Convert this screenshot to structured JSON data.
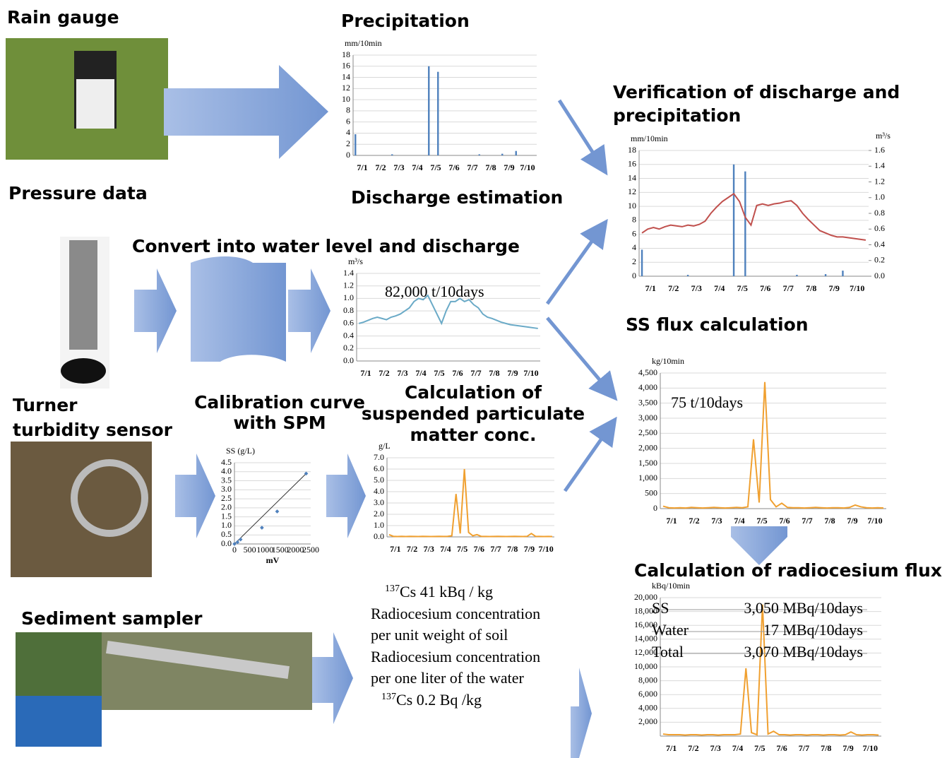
{
  "labels": {
    "rain_gauge": "Rain gauge",
    "precipitation": "Precipitation",
    "verification_1": "Verification of discharge and",
    "verification_2": "precipitation",
    "pressure_data": "Pressure data",
    "discharge_estimation": "Discharge estimation",
    "convert": "Convert into water level and discharge",
    "ss_flux": "SS flux calculation",
    "turner_1": "Turner",
    "turner_2": "turbidity sensor",
    "calibration_1": "Calibration curve",
    "calibration_2": "with SPM",
    "spm_1": "Calculation of",
    "spm_2": "suspended particulate",
    "spm_3": "matter conc.",
    "cs_flux": "Calculation of radiocesium flux",
    "sediment_sampler": "Sediment sampler"
  },
  "notes": {
    "soil_sup": "137",
    "soil_value": "Cs 41 kBq / kg",
    "soil_1": "Radiocesium concentration",
    "soil_2": "per unit weight of soil",
    "water_1": "Radiocesium concentration",
    "water_2": "per one liter of the water",
    "water_sup": "137",
    "water_value": "Cs 0.2 Bq /kg"
  },
  "charts": [
    {
      "type": "bar",
      "ylabel": "mm/10min",
      "ylim": [
        0,
        18
      ],
      "yticks": [
        0,
        2,
        4,
        6,
        8,
        10,
        12,
        14,
        16,
        18
      ],
      "categories": [
        "7/1",
        "7/2",
        "7/3",
        "7/4",
        "7/5",
        "7/6",
        "7/7",
        "7/8",
        "7/9",
        "7/10"
      ],
      "series": [
        {
          "color": "#4f81bd",
          "values": [
            3.8,
            0,
            0,
            0,
            0,
            0,
            0,
            0,
            0.2,
            0,
            0,
            0,
            0,
            0,
            0,
            0,
            16,
            0,
            15,
            0,
            0,
            0,
            0,
            0,
            0,
            0,
            0,
            0.2,
            0,
            0,
            0,
            0,
            0.3,
            0,
            0,
            0.8,
            0,
            0,
            0,
            0
          ]
        }
      ]
    },
    {
      "type": "line",
      "ylabel": "m³/s",
      "ylim": [
        0,
        1.4
      ],
      "yticks": [
        {
          "value": 0,
          "label": "0.0"
        },
        0.2,
        0.4,
        0.6,
        0.8,
        {
          "value": 1,
          "label": "1.0"
        },
        1.2,
        1.4
      ],
      "categories": [
        "7/1",
        "7/2",
        "7/3",
        "7/4",
        "7/5",
        "7/6",
        "7/7",
        "7/8",
        "7/9",
        "7/10"
      ],
      "annotation": "82,000 t/10days",
      "series": [
        {
          "color": "#6aaac7",
          "values": [
            0.6,
            0.62,
            0.65,
            0.68,
            0.7,
            0.68,
            0.66,
            0.7,
            0.72,
            0.75,
            0.8,
            0.85,
            0.95,
            1.0,
            0.98,
            1.05,
            0.9,
            0.75,
            0.6,
            0.8,
            0.95,
            0.95,
            1.0,
            0.95,
            0.98,
            0.9,
            0.85,
            0.75,
            0.7,
            0.68,
            0.65,
            0.62,
            0.6,
            0.58,
            0.57,
            0.56,
            0.55,
            0.54,
            0.53,
            0.52
          ]
        }
      ]
    },
    {
      "type": "dual",
      "ylabel": "mm/10min",
      "ylim": [
        0,
        18
      ],
      "yticks": [
        0,
        2,
        4,
        6,
        8,
        10,
        12,
        14,
        16,
        18
      ],
      "y2label": "m³/s",
      "y2lim": [
        0,
        1.6
      ],
      "y2ticks": [
        {
          "value": 0,
          "label": "0.0"
        },
        0.2,
        0.4,
        0.6,
        0.8,
        {
          "value": 1,
          "label": "1.0"
        },
        1.2,
        1.4,
        1.6
      ],
      "categories": [
        "7/1",
        "7/2",
        "7/3",
        "7/4",
        "7/5",
        "7/6",
        "7/7",
        "7/8",
        "7/9",
        "7/10"
      ],
      "series": [
        {
          "color": "#4f81bd",
          "values": [
            3.8,
            0,
            0,
            0,
            0,
            0,
            0,
            0,
            0.2,
            0,
            0,
            0,
            0,
            0,
            0,
            0,
            16,
            0,
            15,
            0,
            0,
            0,
            0,
            0,
            0,
            0,
            0,
            0.2,
            0,
            0,
            0,
            0,
            0.3,
            0,
            0,
            0.8,
            0,
            0,
            0,
            0
          ]
        },
        {
          "color": "#c0504d",
          "axis": "y2",
          "values": [
            0.55,
            0.6,
            0.62,
            0.6,
            0.63,
            0.65,
            0.64,
            0.63,
            0.65,
            0.64,
            0.66,
            0.7,
            0.8,
            0.88,
            0.95,
            1.0,
            1.05,
            0.95,
            0.75,
            0.65,
            0.9,
            0.92,
            0.9,
            0.92,
            0.93,
            0.95,
            0.96,
            0.9,
            0.8,
            0.72,
            0.65,
            0.58,
            0.55,
            0.52,
            0.5,
            0.5,
            0.49,
            0.48,
            0.47,
            0.46
          ]
        }
      ]
    },
    {
      "type": "line",
      "ylabel": "kg/10min",
      "ylim": [
        0,
        4500
      ],
      "yticks": [
        0,
        500,
        {
          "value": 1000,
          "label": "1,000"
        },
        {
          "value": 1500,
          "label": "1,500"
        },
        {
          "value": 2000,
          "label": "2,000"
        },
        {
          "value": 2500,
          "label": "2,500"
        },
        {
          "value": 3000,
          "label": "3,000"
        },
        {
          "value": 3500,
          "label": "3,500"
        },
        {
          "value": 4000,
          "label": "4,000"
        },
        {
          "value": 4500,
          "label": "4,500"
        }
      ],
      "categories": [
        "7/1",
        "7/2",
        "7/3",
        "7/4",
        "7/5",
        "7/6",
        "7/7",
        "7/8",
        "7/9",
        "7/10"
      ],
      "annotation": "75 t/10days",
      "series": [
        {
          "color": "#f0a030",
          "values": [
            80,
            30,
            20,
            30,
            20,
            40,
            30,
            20,
            30,
            40,
            30,
            20,
            30,
            40,
            30,
            60,
            2300,
            200,
            4200,
            300,
            60,
            180,
            40,
            30,
            30,
            20,
            30,
            40,
            30,
            20,
            30,
            30,
            20,
            40,
            120,
            60,
            30,
            20,
            30,
            20
          ]
        }
      ]
    },
    {
      "type": "scatter",
      "xlabel": "mV",
      "ylabel": "SS (g/L)",
      "xlim": [
        0,
        2500
      ],
      "xticks": [
        0,
        500,
        1000,
        1500,
        2000,
        2500
      ],
      "ylim": [
        0,
        4.5
      ],
      "yticks": [
        {
          "value": 0,
          "label": "0.0"
        },
        0.5,
        {
          "value": 1,
          "label": "1.0"
        },
        1.5,
        {
          "value": 2,
          "label": "2.0"
        },
        2.5,
        {
          "value": 3,
          "label": "3.0"
        },
        3.5,
        {
          "value": 4,
          "label": "4.0"
        },
        4.5
      ],
      "series": [
        {
          "color": "#4f81bd",
          "x": [
            0,
            100,
            200,
            900,
            1400,
            2350
          ],
          "values": [
            0,
            0.1,
            0.25,
            0.9,
            1.8,
            3.9
          ]
        }
      ]
    },
    {
      "type": "line",
      "ylabel": "g/L",
      "ylim": [
        0,
        7
      ],
      "yticks": [
        {
          "value": 0,
          "label": "0.0"
        },
        {
          "value": 1,
          "label": "1.0"
        },
        {
          "value": 2,
          "label": "2.0"
        },
        {
          "value": 3,
          "label": "3.0"
        },
        {
          "value": 4,
          "label": "4.0"
        },
        {
          "value": 5,
          "label": "5.0"
        },
        {
          "value": 6,
          "label": "6.0"
        },
        {
          "value": 7,
          "label": "7.0"
        }
      ],
      "categories": [
        "7/1",
        "7/2",
        "7/3",
        "7/4",
        "7/5",
        "7/6",
        "7/7",
        "7/8",
        "7/9",
        "7/10"
      ],
      "series": [
        {
          "color": "#f0a030",
          "values": [
            0.2,
            0.05,
            0.03,
            0.05,
            0.03,
            0.05,
            0.04,
            0.03,
            0.05,
            0.04,
            0.03,
            0.04,
            0.05,
            0.04,
            0.05,
            0.1,
            3.8,
            0.3,
            6.0,
            0.4,
            0.1,
            0.2,
            0.05,
            0.04,
            0.03,
            0.04,
            0.05,
            0.04,
            0.03,
            0.04,
            0.05,
            0.04,
            0.03,
            0.05,
            0.3,
            0.05,
            0.04,
            0.03,
            0.04,
            0.03
          ]
        }
      ]
    },
    {
      "type": "line",
      "ylabel": "kBq/10min",
      "ylim": [
        0,
        20000
      ],
      "yticks": [
        {
          "value": 2000,
          "label": "2,000"
        },
        {
          "value": 4000,
          "label": "4,000"
        },
        {
          "value": 6000,
          "label": "6,000"
        },
        {
          "value": 8000,
          "label": "8,000"
        },
        {
          "value": 10000,
          "label": "10,000"
        },
        {
          "value": 12000,
          "label": "12,000"
        },
        {
          "value": 14000,
          "label": "14,000"
        },
        {
          "value": 16000,
          "label": "16,000"
        },
        {
          "value": 18000,
          "label": "18,000"
        },
        {
          "value": 20000,
          "label": "20,000"
        }
      ],
      "categories": [
        "7/1",
        "7/2",
        "7/3",
        "7/4",
        "7/5",
        "7/6",
        "7/7",
        "7/8",
        "7/9",
        "7/10"
      ],
      "table": [
        [
          "SS",
          "3,050 MBq/10days"
        ],
        [
          "Water",
          "17 MBq/10days"
        ],
        [
          "Total",
          "3,070 MBq/10days"
        ]
      ],
      "series": [
        {
          "color": "#f0a030",
          "values": [
            300,
            200,
            200,
            200,
            150,
            200,
            200,
            150,
            200,
            200,
            150,
            200,
            200,
            200,
            300,
            9800,
            500,
            200,
            19000,
            300,
            700,
            200,
            200,
            150,
            200,
            200,
            150,
            200,
            200,
            150,
            200,
            200,
            150,
            200,
            600,
            200,
            150,
            200,
            200,
            150
          ]
        }
      ]
    }
  ]
}
